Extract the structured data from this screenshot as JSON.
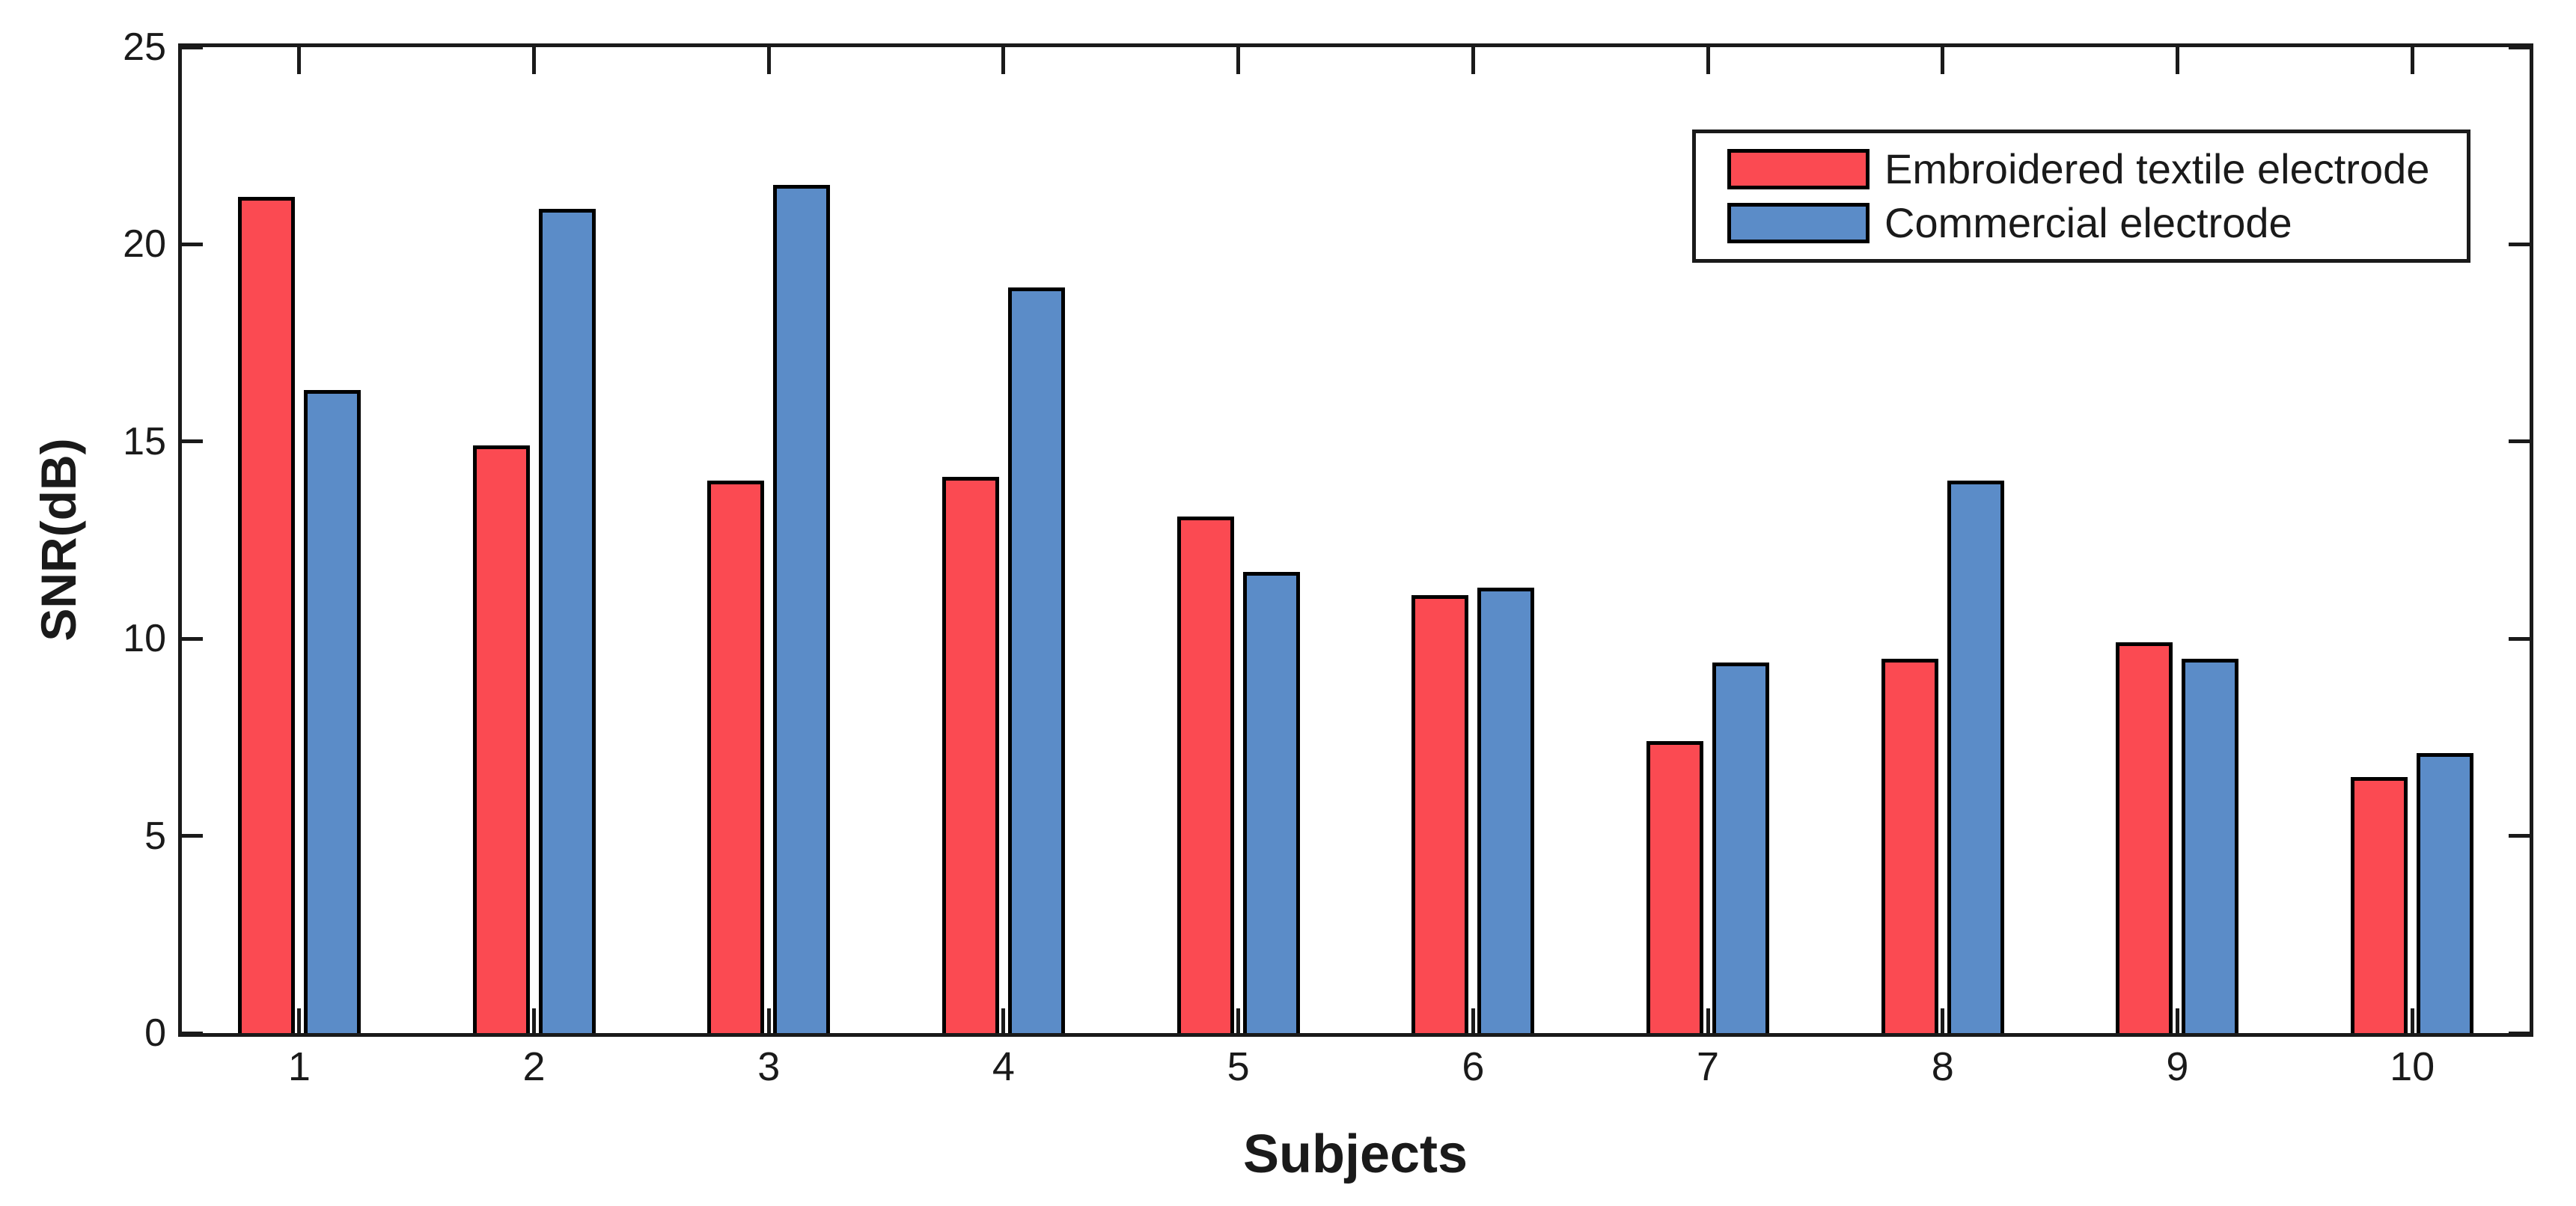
{
  "chart_data": {
    "type": "bar",
    "xlabel": "Subjects",
    "ylabel": "SNR(dB)",
    "categories": [
      "1",
      "2",
      "3",
      "4",
      "5",
      "6",
      "7",
      "8",
      "9",
      "10"
    ],
    "series": [
      {
        "name": "Embroidered textile electrode",
        "color": "#FB4A52",
        "values": [
          21.2,
          14.9,
          14.0,
          14.1,
          13.1,
          11.1,
          7.4,
          9.5,
          9.9,
          6.5
        ]
      },
      {
        "name": "Commercial electrode",
        "color": "#5B8CC8",
        "values": [
          16.3,
          20.9,
          21.5,
          18.9,
          11.7,
          11.3,
          9.4,
          14.0,
          9.5,
          7.1
        ]
      }
    ],
    "ylim": [
      0,
      25
    ],
    "yticks": [
      0,
      5,
      10,
      15,
      20,
      25
    ],
    "grid": false,
    "legend_position": "top-right",
    "bar_edge_color": "#000000",
    "axis_color": "#1a1a1a",
    "background": "#ffffff"
  }
}
